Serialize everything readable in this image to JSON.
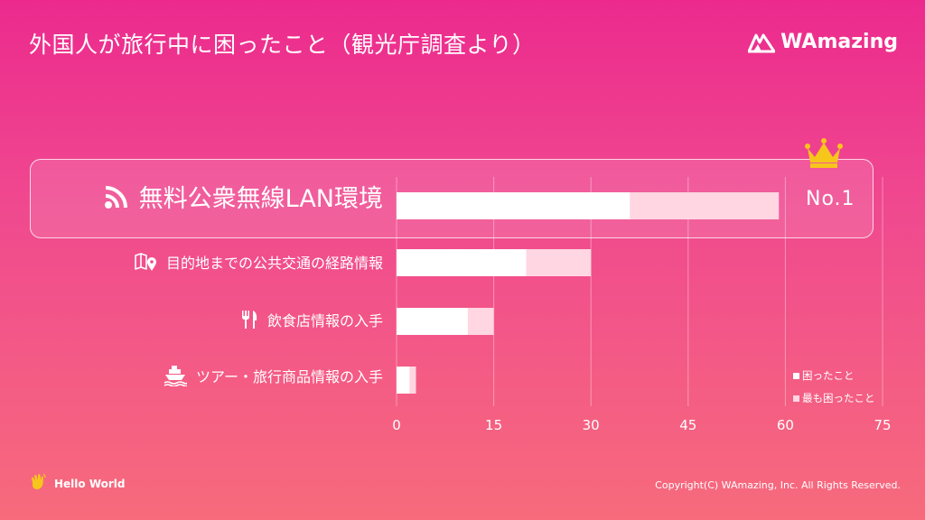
{
  "header": {
    "title": "外国人が旅行中に困ったこと（観光庁調査より）",
    "brand": "WAmazing"
  },
  "highlight": {
    "badge": "No.1"
  },
  "footer": {
    "left": "Hello World",
    "right": "Copyright(C) WAmazing, Inc. All Rights Reserved."
  },
  "icons": {
    "wifi": "wifi-icon",
    "map": "map-pin-icon",
    "food": "fork-knife-icon",
    "ship": "ship-icon",
    "crown": "crown-icon",
    "wave": "waving-hand-icon"
  },
  "colors": {
    "bar_troubled": "#ffd6e2",
    "bar_most": "#ffffff",
    "crown": "#f7c61b"
  },
  "chart_data": {
    "type": "bar",
    "orientation": "horizontal",
    "stacked": false,
    "categories": [
      "無料公衆無線LAN環境",
      "目的地までの公共交通の経路情報",
      "飲食店情報の入手",
      "ツアー・旅行商品情報の入手"
    ],
    "series": [
      {
        "name": "困ったこと",
        "values": [
          59,
          30,
          15,
          3
        ]
      },
      {
        "name": "最も困ったこと",
        "values": [
          36,
          20,
          11,
          2
        ]
      }
    ],
    "xticks": [
      "0",
      "15",
      "30",
      "45",
      "60",
      "75"
    ],
    "xlim": [
      0,
      75
    ],
    "grid": true,
    "legend": "bottom-right"
  }
}
